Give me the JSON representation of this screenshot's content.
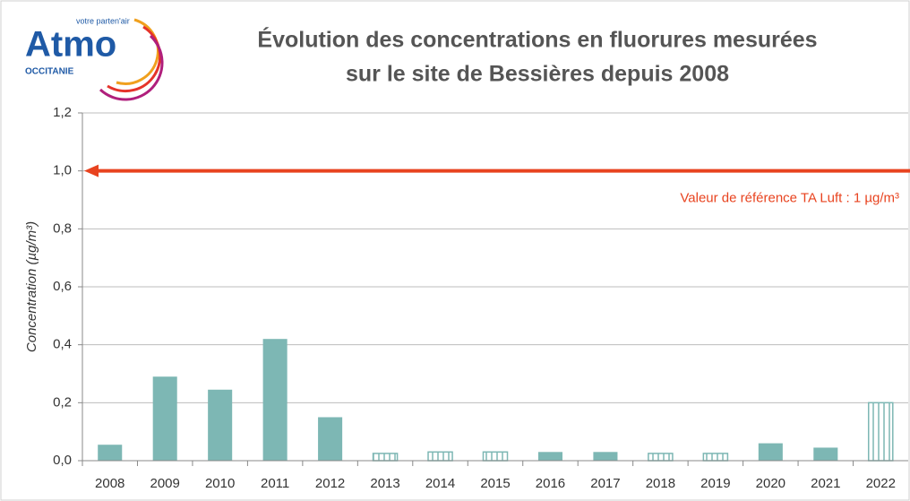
{
  "logo": {
    "name": "Atmo",
    "tagline": "votre parten'air",
    "region": "OCCITANIE"
  },
  "chart_data": {
    "type": "bar",
    "title": [
      "Évolution des concentrations en fluorures mesurées",
      "sur le site de Bessières depuis 2008"
    ],
    "y_label": "Concentration (µg/m³)",
    "categories": [
      "2008",
      "2009",
      "2010",
      "2011",
      "2012",
      "2013",
      "2014",
      "2015",
      "2016",
      "2017",
      "2018",
      "2019",
      "2020",
      "2021",
      "2022"
    ],
    "values": [
      0.055,
      0.29,
      0.245,
      0.42,
      0.15,
      0.025,
      0.03,
      0.03,
      0.03,
      0.03,
      0.025,
      0.025,
      0.06,
      0.045,
      0.2
    ],
    "hatched": [
      false,
      false,
      false,
      false,
      false,
      true,
      true,
      true,
      false,
      false,
      true,
      true,
      false,
      false,
      true
    ],
    "color": "#7db7b4",
    "ylim": [
      0,
      1.2
    ],
    "yticks": [
      {
        "value": 0,
        "label": "0,0"
      },
      {
        "value": 0.2,
        "label": "0,2"
      },
      {
        "value": 0.4,
        "label": "0,4"
      },
      {
        "value": 0.6,
        "label": "0,6"
      },
      {
        "value": 0.8,
        "label": "0,8"
      },
      {
        "value": 1.0,
        "label": "1,0"
      },
      {
        "value": 1.2,
        "label": "1,2"
      }
    ],
    "grid": true,
    "reference": {
      "value": 1,
      "label": "Valeur de référence TA Luft : 1 µg/m³",
      "color": "#e8431f"
    }
  }
}
